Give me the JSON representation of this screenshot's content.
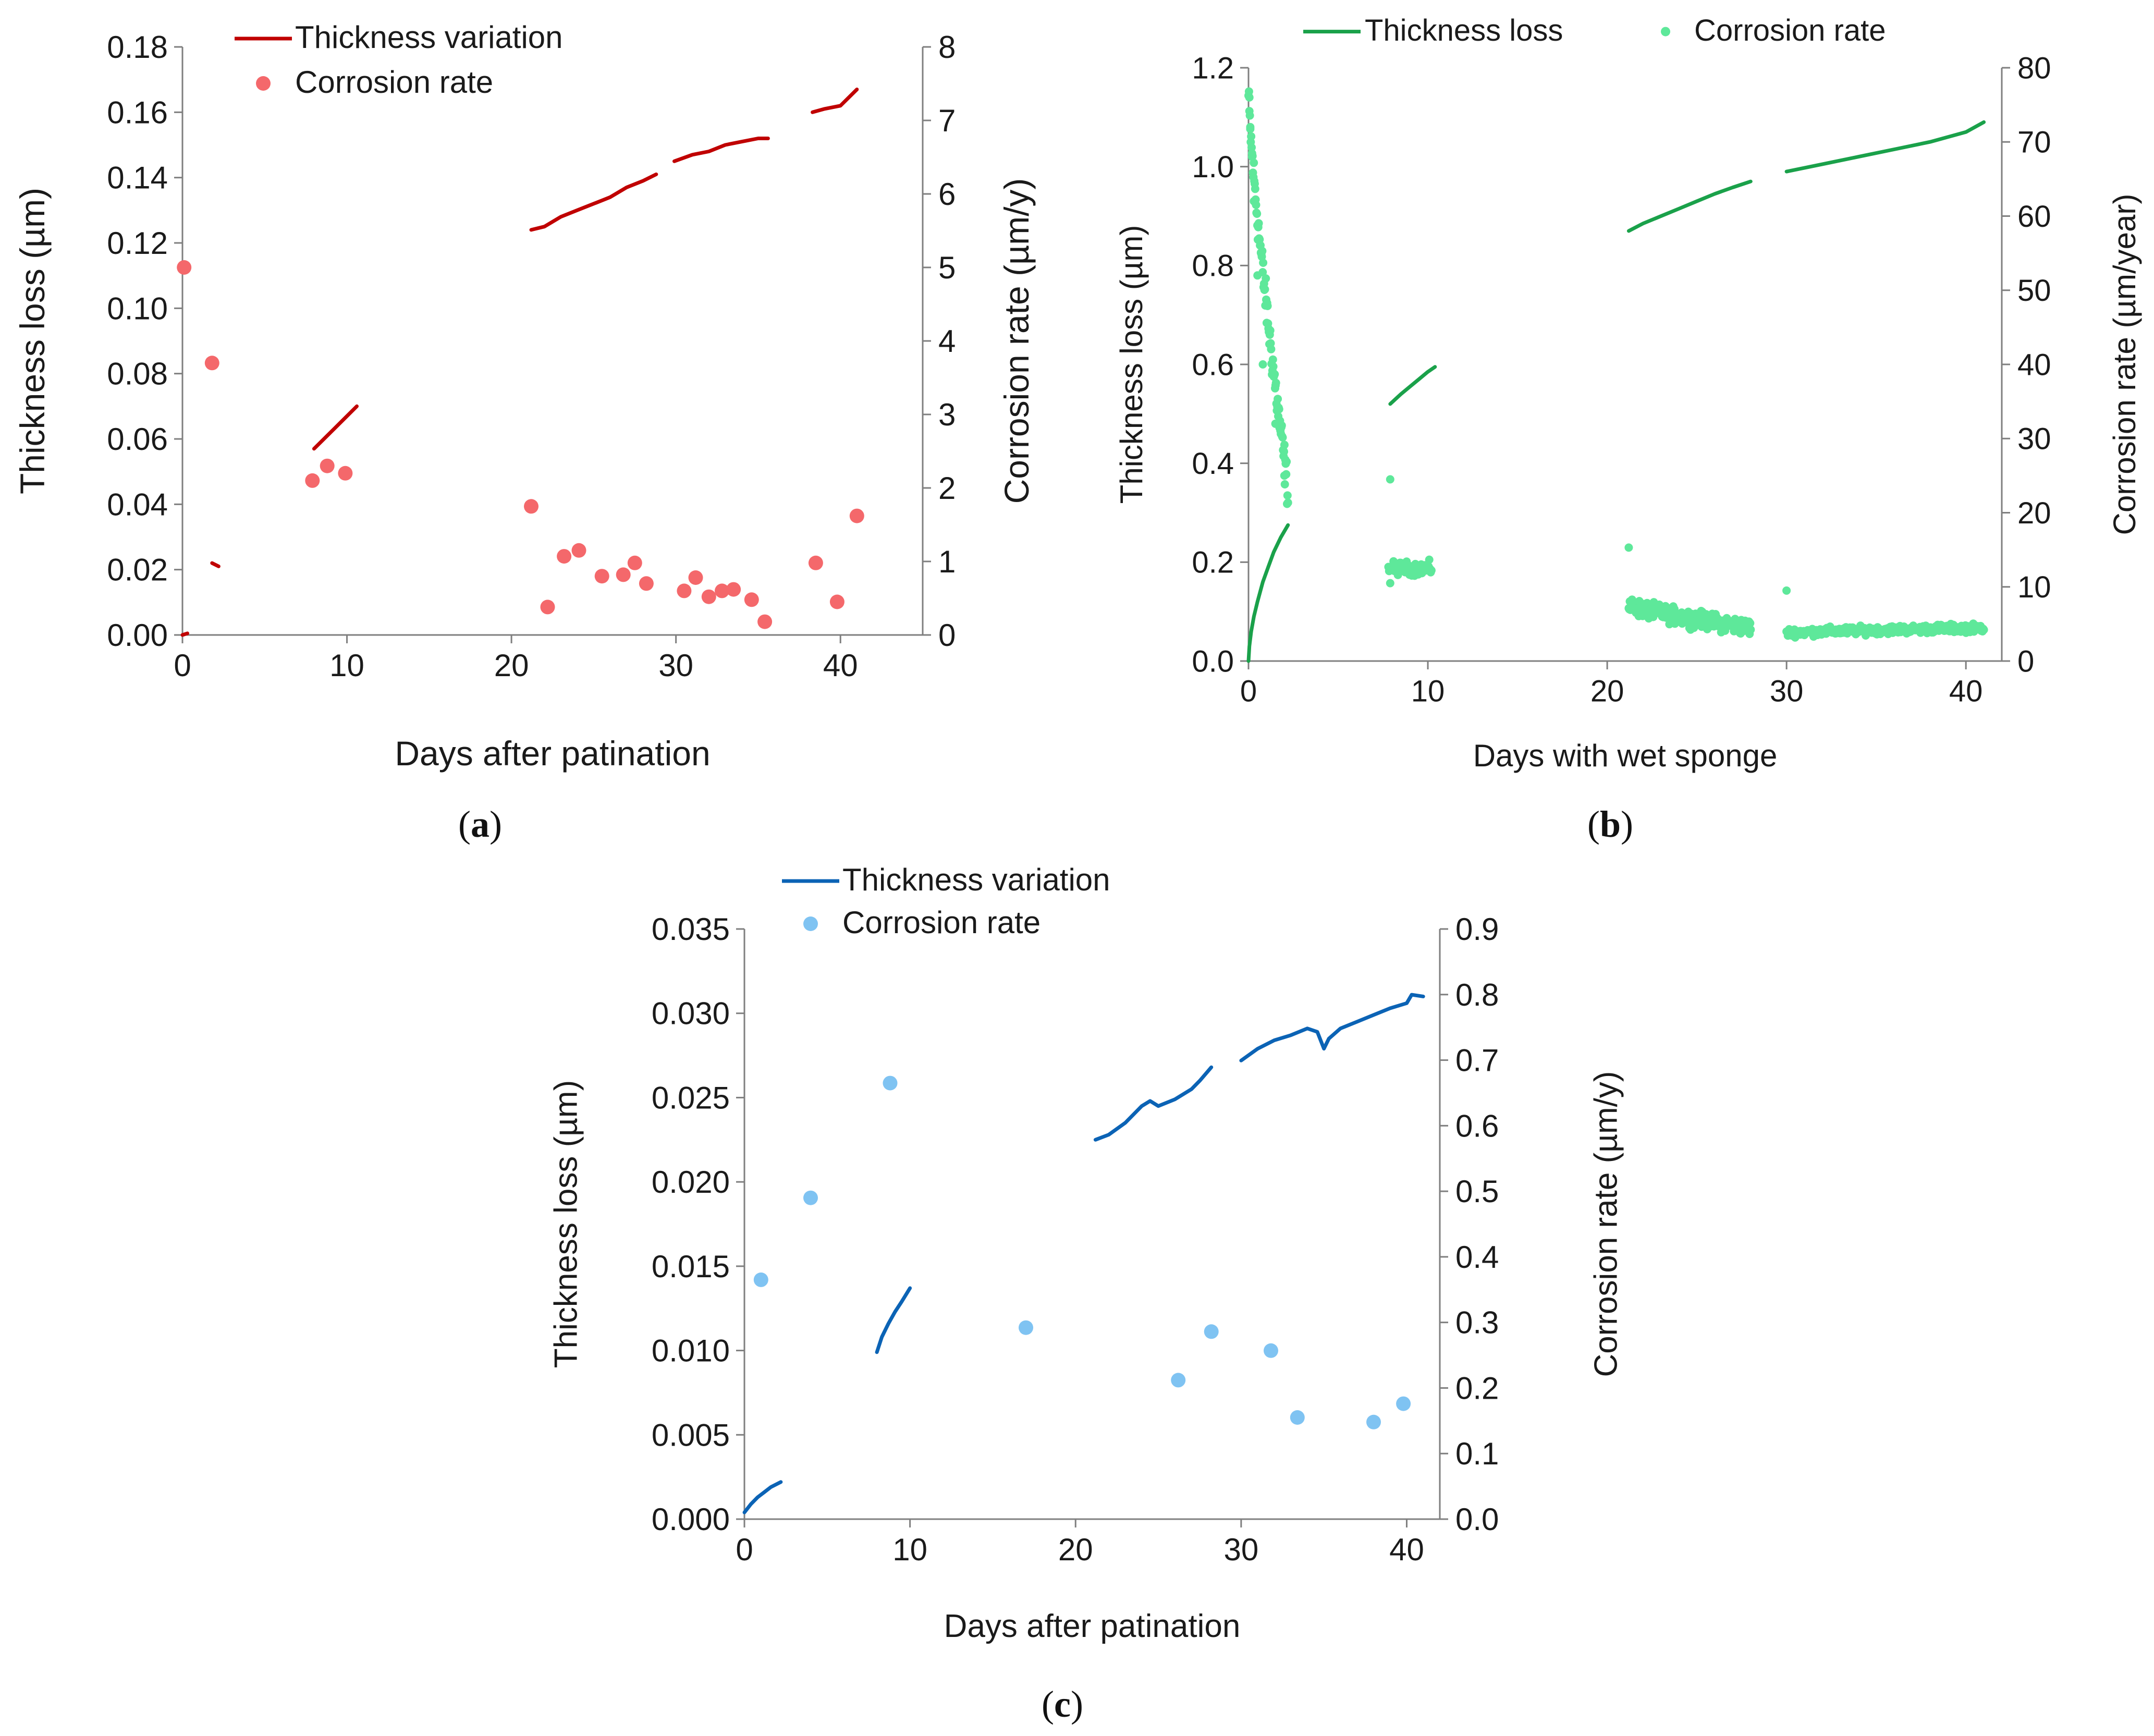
{
  "chart_data": [
    {
      "panel": "(a)",
      "panel_letter": "a",
      "type": "line+scatter",
      "xlabel": "Days after patination",
      "ylabel": "Thickness loss (µm)",
      "y2label": "Corrosion rate (µm/y)",
      "xlim": [
        0,
        45
      ],
      "xticks": [
        "0",
        "10",
        "20",
        "30",
        "40"
      ],
      "xtick_values": [
        0,
        10,
        20,
        30,
        40
      ],
      "ylim": [
        0,
        0.18
      ],
      "yticks": [
        "0.00",
        "0.02",
        "0.04",
        "0.06",
        "0.08",
        "0.10",
        "0.12",
        "0.14",
        "0.16",
        "0.18"
      ],
      "ytick_values": [
        0,
        0.02,
        0.04,
        0.06,
        0.08,
        0.1,
        0.12,
        0.14,
        0.16,
        0.18
      ],
      "y2lim": [
        0,
        8
      ],
      "y2ticks": [
        "0",
        "1",
        "2",
        "3",
        "4",
        "5",
        "6",
        "7",
        "8"
      ],
      "y2tick_values": [
        0,
        1,
        2,
        3,
        4,
        5,
        6,
        7,
        8
      ],
      "line_color": "#c00000",
      "point_color": "#f4686b",
      "legend": {
        "line": "Thickness variation",
        "points": "Corrosion rate"
      },
      "line_series_name": "Thickness variation",
      "line_segments": [
        [
          [
            0,
            0.0
          ],
          [
            0.3,
            0.0005
          ]
        ],
        [
          [
            1.8,
            0.022
          ],
          [
            2.2,
            0.021
          ]
        ],
        [
          [
            8.0,
            0.057
          ],
          [
            9.0,
            0.062
          ],
          [
            10.0,
            0.067
          ],
          [
            10.6,
            0.07
          ]
        ],
        [
          [
            21.2,
            0.124
          ],
          [
            22.0,
            0.125
          ],
          [
            23.0,
            0.128
          ],
          [
            24.0,
            0.13
          ],
          [
            25.0,
            0.132
          ],
          [
            26.0,
            0.134
          ],
          [
            27.0,
            0.137
          ],
          [
            28.0,
            0.139
          ],
          [
            28.8,
            0.141
          ]
        ],
        [
          [
            29.9,
            0.145
          ],
          [
            31.0,
            0.147
          ],
          [
            32.0,
            0.148
          ],
          [
            33.0,
            0.15
          ],
          [
            34.0,
            0.151
          ],
          [
            35.0,
            0.152
          ],
          [
            35.6,
            0.152
          ]
        ],
        [
          [
            38.3,
            0.16
          ],
          [
            39.0,
            0.161
          ],
          [
            40.0,
            0.162
          ],
          [
            41.0,
            0.167
          ]
        ]
      ],
      "point_series_name": "Corrosion rate",
      "points_xy": [
        [
          0.1,
          5.0
        ],
        [
          1.8,
          3.7
        ],
        [
          7.9,
          2.1
        ],
        [
          8.8,
          2.3
        ],
        [
          9.9,
          2.2
        ],
        [
          21.2,
          1.75
        ],
        [
          22.2,
          0.38
        ],
        [
          23.2,
          1.07
        ],
        [
          24.1,
          1.15
        ],
        [
          25.5,
          0.8
        ],
        [
          26.8,
          0.82
        ],
        [
          27.5,
          0.98
        ],
        [
          28.2,
          0.7
        ],
        [
          30.5,
          0.6
        ],
        [
          31.2,
          0.78
        ],
        [
          32.0,
          0.52
        ],
        [
          32.8,
          0.6
        ],
        [
          33.5,
          0.62
        ],
        [
          34.6,
          0.48
        ],
        [
          35.4,
          0.18
        ],
        [
          38.5,
          0.98
        ],
        [
          39.8,
          0.45
        ],
        [
          41.0,
          1.62
        ]
      ]
    },
    {
      "panel": "(b)",
      "panel_letter": "b",
      "type": "line+scatter",
      "xlabel": "Days with wet sponge",
      "ylabel": "Thickness loss (µm)",
      "y2label": "Corrosion rate (µm/year)",
      "xlim": [
        0,
        42
      ],
      "xticks": [
        "0",
        "10",
        "20",
        "30",
        "40"
      ],
      "xtick_values": [
        0,
        10,
        20,
        30,
        40
      ],
      "ylim": [
        0,
        1.2
      ],
      "yticks": [
        "0.0",
        "0.2",
        "0.4",
        "0.6",
        "0.8",
        "1.0",
        "1.2"
      ],
      "ytick_values": [
        0,
        0.2,
        0.4,
        0.6,
        0.8,
        1.0,
        1.2
      ],
      "y2lim": [
        0,
        80
      ],
      "y2ticks": [
        "0",
        "10",
        "20",
        "30",
        "40",
        "50",
        "60",
        "70",
        "80"
      ],
      "y2tick_values": [
        0,
        10,
        20,
        30,
        40,
        50,
        60,
        70,
        80
      ],
      "line_color": "#1aa14a",
      "point_color": "#5ee89a",
      "legend": {
        "line": "Thickness loss",
        "points": "Corrosion rate"
      },
      "line_series_name": "Thickness loss",
      "line_segments": [
        [
          [
            0,
            0.0
          ],
          [
            0.05,
            0.03
          ],
          [
            0.15,
            0.06
          ],
          [
            0.3,
            0.09
          ],
          [
            0.5,
            0.12
          ],
          [
            0.8,
            0.16
          ],
          [
            1.1,
            0.19
          ],
          [
            1.4,
            0.22
          ],
          [
            1.8,
            0.25
          ],
          [
            2.2,
            0.275
          ]
        ],
        [
          [
            7.9,
            0.52
          ],
          [
            8.5,
            0.54
          ],
          [
            9.0,
            0.555
          ],
          [
            9.5,
            0.57
          ],
          [
            10.0,
            0.585
          ],
          [
            10.4,
            0.595
          ]
        ],
        [
          [
            21.2,
            0.87
          ],
          [
            22.0,
            0.885
          ],
          [
            23.0,
            0.9
          ],
          [
            24.0,
            0.915
          ],
          [
            25.0,
            0.93
          ],
          [
            26.0,
            0.945
          ],
          [
            27.0,
            0.958
          ],
          [
            28.0,
            0.97
          ]
        ],
        [
          [
            30.0,
            0.99
          ],
          [
            32.0,
            1.005
          ],
          [
            34.0,
            1.02
          ],
          [
            36.0,
            1.035
          ],
          [
            38.0,
            1.05
          ],
          [
            40.0,
            1.07
          ],
          [
            41.0,
            1.09
          ]
        ]
      ],
      "point_series_name": "Corrosion rate",
      "point_clusters": [
        {
          "x_range": [
            0.0,
            2.2
          ],
          "y_start": 76,
          "y_end": 23,
          "spread": 4,
          "count": 90
        },
        {
          "x_range": [
            7.8,
            10.2
          ],
          "y_start": 12.5,
          "y_end": 12.5,
          "spread": 1.3,
          "count": 60
        },
        {
          "x_range": [
            21.2,
            28.0
          ],
          "y_start": 7.5,
          "y_end": 4.5,
          "spread": 1.6,
          "count": 220
        },
        {
          "x_range": [
            30.0,
            41.0
          ],
          "y_start": 3.8,
          "y_end": 4.5,
          "spread": 0.8,
          "count": 300
        }
      ],
      "points_xy": [
        [
          0.05,
          76
        ],
        [
          0.1,
          72
        ],
        [
          0.2,
          68
        ],
        [
          0.3,
          62
        ],
        [
          0.5,
          52
        ],
        [
          0.8,
          40
        ],
        [
          1.5,
          32
        ],
        [
          2.0,
          25
        ],
        [
          7.9,
          24.5
        ],
        [
          7.9,
          10.5
        ],
        [
          21.2,
          15.3
        ],
        [
          30.0,
          9.5
        ]
      ]
    },
    {
      "panel": "(c)",
      "panel_letter": "c",
      "type": "line+scatter",
      "xlabel": "Days after patination",
      "ylabel": "Thickness loss (µm)",
      "y2label": "Corrosion rate (µm/y)",
      "xlim": [
        0,
        42
      ],
      "xticks": [
        "0",
        "10",
        "20",
        "30",
        "40"
      ],
      "xtick_values": [
        0,
        10,
        20,
        30,
        40
      ],
      "ylim": [
        0,
        0.035
      ],
      "yticks": [
        "0.000",
        "0.005",
        "0.010",
        "0.015",
        "0.020",
        "0.025",
        "0.030",
        "0.035"
      ],
      "ytick_values": [
        0,
        0.005,
        0.01,
        0.015,
        0.02,
        0.025,
        0.03,
        0.035
      ],
      "y2lim": [
        0,
        0.9
      ],
      "y2ticks": [
        "0.0",
        "0.1",
        "0.2",
        "0.3",
        "0.4",
        "0.5",
        "0.6",
        "0.7",
        "0.8",
        "0.9"
      ],
      "y2tick_values": [
        0,
        0.1,
        0.2,
        0.3,
        0.4,
        0.5,
        0.6,
        0.7,
        0.8,
        0.9
      ],
      "line_color": "#0b63b5",
      "point_color": "#7fc3f2",
      "legend": {
        "line": "Thickness variation",
        "points": "Corrosion rate"
      },
      "line_series_name": "Thickness variation",
      "line_segments": [
        [
          [
            0.0,
            0.0004
          ],
          [
            0.4,
            0.0009
          ],
          [
            0.8,
            0.0013
          ],
          [
            1.2,
            0.0016
          ],
          [
            1.6,
            0.0019
          ],
          [
            2.2,
            0.0022
          ]
        ],
        [
          [
            8.0,
            0.0099
          ],
          [
            8.3,
            0.0108
          ],
          [
            8.7,
            0.0116
          ],
          [
            9.1,
            0.0123
          ],
          [
            9.5,
            0.0129
          ],
          [
            10.0,
            0.0137
          ]
        ],
        [
          [
            21.2,
            0.0225
          ],
          [
            22.0,
            0.0228
          ],
          [
            23.0,
            0.0235
          ],
          [
            24.0,
            0.0245
          ],
          [
            24.5,
            0.0248
          ],
          [
            25.0,
            0.0245
          ],
          [
            26.0,
            0.0249
          ],
          [
            27.0,
            0.0255
          ],
          [
            27.5,
            0.026
          ],
          [
            28.2,
            0.0268
          ]
        ],
        [
          [
            30.0,
            0.0272
          ],
          [
            31.0,
            0.0279
          ],
          [
            32.0,
            0.0284
          ],
          [
            33.0,
            0.0287
          ],
          [
            34.0,
            0.0291
          ],
          [
            34.6,
            0.0289
          ],
          [
            35.0,
            0.0279
          ],
          [
            35.3,
            0.0285
          ],
          [
            36.0,
            0.0291
          ],
          [
            37.0,
            0.0295
          ],
          [
            38.0,
            0.0299
          ],
          [
            39.0,
            0.0303
          ],
          [
            40.0,
            0.0306
          ],
          [
            40.3,
            0.0311
          ],
          [
            41.0,
            0.031
          ]
        ]
      ],
      "point_series_name": "Corrosion rate",
      "points_xy": [
        [
          1.0,
          0.365
        ],
        [
          4.0,
          0.49
        ],
        [
          8.8,
          0.665
        ],
        [
          17.0,
          0.292
        ],
        [
          26.2,
          0.212
        ],
        [
          28.2,
          0.286
        ],
        [
          31.8,
          0.257
        ],
        [
          33.4,
          0.155
        ],
        [
          38.0,
          0.148
        ],
        [
          39.8,
          0.176
        ]
      ]
    }
  ]
}
